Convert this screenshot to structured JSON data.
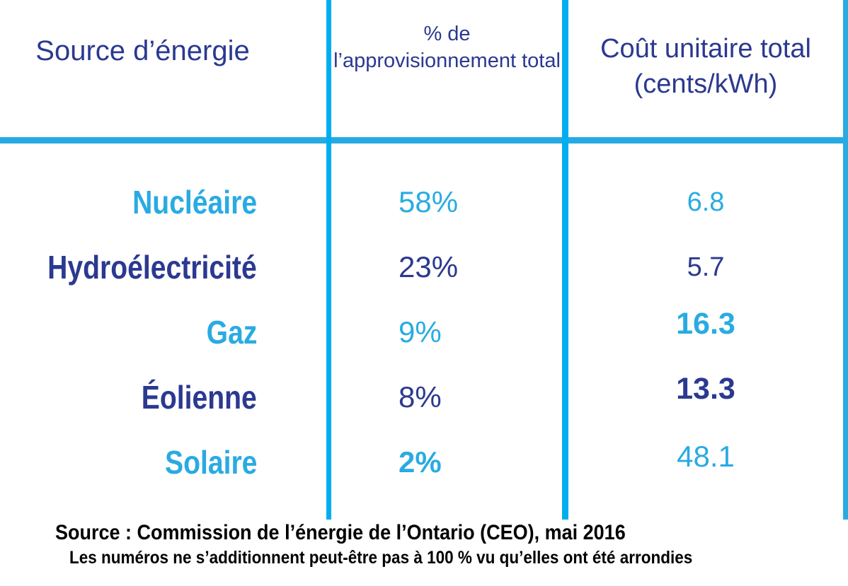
{
  "table": {
    "headers": {
      "source": "Source d’énergie",
      "share": "% de l’approvisionnement total",
      "cost": "Coût unitaire total (cents/kWh)"
    },
    "rows": [
      {
        "source": "Nucléaire",
        "share": "58%",
        "cost": "6.8",
        "tone": "light"
      },
      {
        "source": "Hydroélectricité",
        "share": "23%",
        "cost": "5.7",
        "tone": "dark"
      },
      {
        "source": "Gaz",
        "share": "9%",
        "cost": "16.3",
        "tone": "light"
      },
      {
        "source": "Éolienne",
        "share": "8%",
        "cost": "13.3",
        "tone": "dark"
      },
      {
        "source": "Solaire",
        "share": "2%",
        "cost": "48.1",
        "tone": "light"
      }
    ]
  },
  "footer": {
    "source_line": "Source : Commission de l’énergie de l’Ontario (CEO), mai 2016",
    "note_line": "Les numéros ne s’additionnent peut-être pas à 100 % vu qu’elles ont été arrondies"
  },
  "colors": {
    "light_blue_text": "#29ABE2",
    "dark_blue_text": "#2B3990",
    "grid_line_cyan": "#00AEEF",
    "grid_line_horizontal": "#27AAE1",
    "footer_text": "#000000",
    "background": "#FFFFFF"
  },
  "chart_data": {
    "type": "table",
    "title": "",
    "columns": [
      "Source d’énergie",
      "% de l’approvisionnement total",
      "Coût unitaire total (cents/kWh)"
    ],
    "categories": [
      "Nucléaire",
      "Hydroélectricité",
      "Gaz",
      "Éolienne",
      "Solaire"
    ],
    "series": [
      {
        "name": "% de l’approvisionnement total",
        "values": [
          58,
          23,
          9,
          8,
          2
        ],
        "unit": "%"
      },
      {
        "name": "Coût unitaire total (cents/kWh)",
        "values": [
          6.8,
          5.7,
          16.3,
          13.3,
          48.1
        ],
        "unit": "cents/kWh"
      }
    ],
    "annotations": [
      "Source : Commission de l’énergie de l’Ontario (CEO), mai 2016",
      "Les numéros ne s’additionnent peut-être pas à 100 % vu qu’elles ont été arrondies"
    ]
  }
}
